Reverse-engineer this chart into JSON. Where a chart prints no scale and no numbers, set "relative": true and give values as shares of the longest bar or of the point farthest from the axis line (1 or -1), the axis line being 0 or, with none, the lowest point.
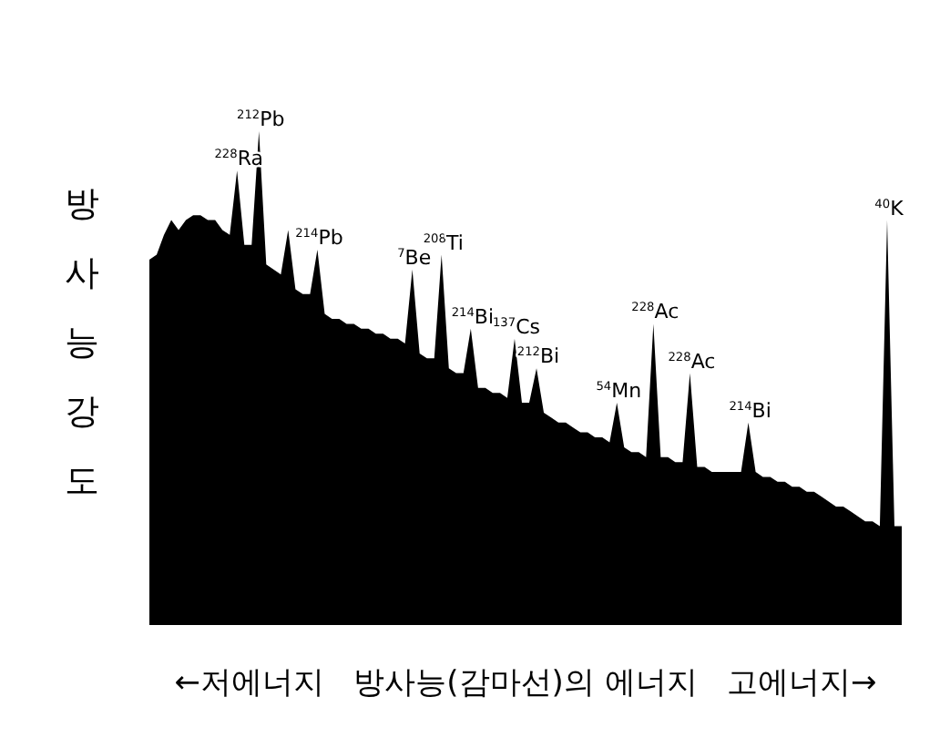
{
  "chart_data": {
    "type": "area",
    "relative": true,
    "color": "#000000",
    "ylabel": "방사능강도",
    "xlabel": "←저에너지   방사능(감마선)의 에너지   고에너지→",
    "values": [
      0.74,
      0.75,
      0.79,
      0.82,
      0.8,
      0.82,
      0.83,
      0.83,
      0.82,
      0.82,
      0.8,
      0.79,
      0.92,
      0.77,
      0.77,
      1.0,
      0.73,
      0.72,
      0.71,
      0.8,
      0.68,
      0.67,
      0.67,
      0.76,
      0.63,
      0.62,
      0.62,
      0.61,
      0.61,
      0.6,
      0.6,
      0.59,
      0.59,
      0.58,
      0.58,
      0.57,
      0.72,
      0.55,
      0.54,
      0.54,
      0.75,
      0.52,
      0.51,
      0.51,
      0.6,
      0.48,
      0.48,
      0.47,
      0.47,
      0.46,
      0.58,
      0.45,
      0.45,
      0.52,
      0.43,
      0.42,
      0.41,
      0.41,
      0.4,
      0.39,
      0.39,
      0.38,
      0.38,
      0.37,
      0.45,
      0.36,
      0.35,
      0.35,
      0.34,
      0.61,
      0.34,
      0.34,
      0.33,
      0.33,
      0.51,
      0.32,
      0.32,
      0.31,
      0.31,
      0.31,
      0.31,
      0.31,
      0.41,
      0.31,
      0.3,
      0.3,
      0.29,
      0.29,
      0.28,
      0.28,
      0.27,
      0.27,
      0.26,
      0.25,
      0.24,
      0.24,
      0.23,
      0.22,
      0.21,
      0.21,
      0.2,
      0.82,
      0.2,
      0.2
    ],
    "annotations": [
      {
        "text": "$^{228}$Ra",
        "y": 0.92
      },
      {
        "text": "$^{212}$Pb",
        "y": 1.0
      },
      {
        "text": "$^{214}$Pb",
        "y": 0.76
      },
      {
        "text": "$^{7}$Be",
        "y": 0.72
      },
      {
        "text": "$^{208}$Ti",
        "y": 0.75
      },
      {
        "text": "$^{214}$Bi",
        "y": 0.6
      },
      {
        "text": "$^{137}$Cs",
        "y": 0.58
      },
      {
        "text": "$^{212}$Bi",
        "y": 0.52
      },
      {
        "text": "$^{54}$Mn",
        "y": 0.45
      },
      {
        "text": "$^{228}$Ac",
        "y": 0.61
      },
      {
        "text": "$^{228}$Ac",
        "y": 0.51
      },
      {
        "text": "$^{214}$Bi",
        "y": 0.41
      },
      {
        "text": "$^{40}$K",
        "y": 0.82
      }
    ],
    "categories": [
      null,
      null,
      null,
      null,
      null,
      null,
      null,
      null,
      null,
      null,
      null,
      null,
      null,
      null,
      null,
      null,
      null,
      null,
      null,
      null,
      null,
      null,
      null,
      null,
      null,
      null,
      null,
      null,
      null,
      null,
      null,
      null,
      null,
      null,
      null,
      null,
      null,
      null,
      null,
      null,
      null,
      null,
      null,
      null,
      null,
      null,
      null,
      null,
      null,
      null,
      null,
      null,
      null,
      null,
      null,
      null,
      null,
      null,
      null,
      null,
      null,
      null,
      null,
      null,
      null,
      null,
      null,
      null,
      null,
      null,
      null,
      null,
      null,
      null,
      null,
      null,
      null,
      null,
      null,
      null,
      null,
      null,
      null,
      null,
      null,
      null,
      null,
      null,
      null,
      null,
      null,
      null,
      null,
      null,
      null,
      null,
      null,
      null,
      null,
      null,
      null,
      null,
      null,
      null
    ]
  }
}
